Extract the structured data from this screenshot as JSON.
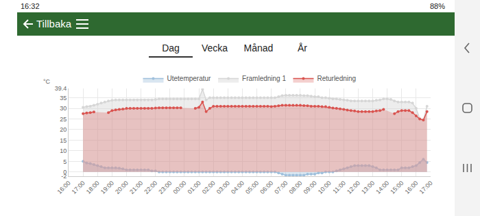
{
  "status_bar": {
    "time": "16:32",
    "battery": "88%"
  },
  "header": {
    "back_label": "Tillbaka"
  },
  "tabs": {
    "items": [
      "Dag",
      "Vecka",
      "Månad",
      "År"
    ],
    "active": "Dag"
  },
  "chart_data": {
    "type": "area",
    "ylabel": "°C",
    "categories": [
      "16:00",
      null,
      null,
      null,
      "17:00",
      null,
      null,
      null,
      "18:00",
      null,
      null,
      null,
      "19:00",
      null,
      null,
      null,
      "20:00",
      null,
      null,
      null,
      "21:00",
      null,
      null,
      null,
      "22:00",
      null,
      null,
      null,
      "23:00",
      null,
      null,
      null,
      "00:00",
      null,
      null,
      null,
      "01:00",
      null,
      null,
      null,
      "02:00",
      null,
      null,
      null,
      "03:00",
      null,
      null,
      null,
      "04:00",
      null,
      null,
      null,
      "05:00",
      null,
      null,
      null,
      "06:00",
      null,
      null,
      null,
      "07:00",
      null,
      null,
      null,
      "08:00",
      null,
      null,
      null,
      "09:00",
      null,
      null,
      null,
      "10:00",
      null,
      null,
      null,
      "11:00",
      null,
      null,
      null,
      "12:00",
      null,
      null,
      null,
      "13:00",
      null,
      null,
      null,
      "14:00",
      null,
      null,
      null,
      "15:00",
      null,
      null,
      null,
      "16:00",
      null,
      null,
      null,
      "17:00"
    ],
    "series": [
      {
        "name": "Utetemperatur",
        "color": "#9fc0dc",
        "marker": "circle",
        "values": [
          null,
          null,
          null,
          null,
          5,
          4.2,
          4,
          3.5,
          3,
          2.5,
          2,
          2,
          2,
          2,
          1.8,
          1.5,
          1,
          1,
          1,
          1,
          1,
          1,
          1,
          0.5,
          0.5,
          0,
          0,
          0,
          0,
          0,
          0,
          0,
          0,
          0,
          0,
          0,
          0,
          0,
          0,
          0,
          0,
          0,
          0,
          0,
          0,
          0,
          0,
          0,
          0,
          0,
          0,
          0,
          0,
          0,
          0,
          0,
          0,
          0,
          -0.5,
          -1,
          -1.5,
          -1.5,
          -1.5,
          -1.5,
          -1.5,
          -1.5,
          -1,
          -1,
          -1,
          -0.5,
          -0.5,
          0,
          0,
          0,
          0.5,
          1,
          1.5,
          2,
          2.5,
          3,
          3,
          3,
          3,
          3,
          2.5,
          2,
          1,
          1,
          1,
          1,
          1,
          1,
          2,
          2,
          2,
          2.5,
          3,
          4.5,
          6,
          4.5,
          null
        ]
      },
      {
        "name": "Framledning 1",
        "color": "#d6d6d6",
        "marker": "circle",
        "values": [
          null,
          null,
          null,
          null,
          30.5,
          30.8,
          31,
          31.5,
          32,
          32.5,
          33,
          33.5,
          33.8,
          34,
          34,
          34,
          34,
          34,
          34,
          34,
          34,
          34,
          34,
          34,
          34.2,
          34.5,
          34.5,
          34.5,
          34.5,
          34.5,
          34.5,
          34.5,
          34.5,
          34.5,
          34.5,
          34.5,
          34.5,
          39,
          34,
          35,
          35,
          35,
          35,
          35,
          35,
          35,
          35,
          35,
          35,
          35,
          35,
          35,
          35,
          35,
          35,
          35,
          35,
          35,
          35.5,
          36,
          36.2,
          36.2,
          36.2,
          36.2,
          36.2,
          36,
          36,
          35.8,
          35.5,
          35.5,
          35,
          35,
          34.8,
          34.5,
          34.5,
          34.2,
          34,
          33.8,
          33.5,
          33.5,
          33.5,
          33.5,
          33.5,
          33.5,
          33.5,
          33.8,
          34,
          34.5,
          34.5,
          34.2,
          33.5,
          33,
          33,
          33,
          33,
          32.5,
          30,
          25,
          24.5,
          31,
          null
        ]
      },
      {
        "name": "Returledning",
        "color": "#d9534f",
        "marker": "circle",
        "values": [
          null,
          null,
          null,
          null,
          27.5,
          27.8,
          28,
          28.3,
          null,
          null,
          null,
          28,
          29,
          29.3,
          29.5,
          29.7,
          30,
          30,
          30,
          30,
          30,
          30,
          30,
          30,
          30.2,
          30.3,
          30.3,
          30.3,
          30.3,
          30.3,
          30.3,
          30.3,
          null,
          null,
          null,
          30,
          30.5,
          33,
          28.5,
          30,
          31,
          31,
          31,
          31,
          31,
          31,
          31,
          31,
          31,
          31,
          31,
          31,
          31,
          31,
          31,
          31,
          30.8,
          31,
          31.2,
          31.5,
          31.5,
          31.5,
          31.5,
          31.5,
          31.5,
          31.3,
          31.2,
          31,
          31,
          31,
          30.8,
          30.8,
          30.5,
          30.2,
          30,
          29.8,
          29.5,
          29.2,
          29,
          28.8,
          28.5,
          28.5,
          28.5,
          28.5,
          28.5,
          28.8,
          29,
          29.5,
          null,
          null,
          27.5,
          28.5,
          29,
          29,
          29,
          28,
          26.5,
          25,
          24.5,
          28.5,
          null
        ]
      }
    ],
    "ylim": [
      -2,
      39.4
    ],
    "yticks": [
      -2,
      0,
      5,
      10,
      15,
      20,
      25,
      30,
      35,
      39.4
    ],
    "grid": true,
    "legend": "top"
  }
}
